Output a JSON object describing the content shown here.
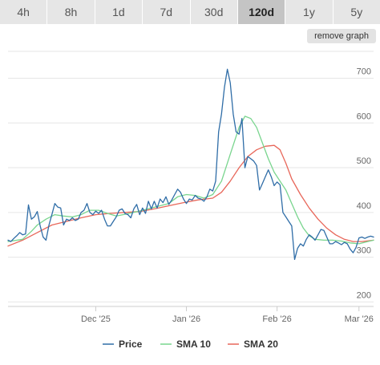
{
  "tabs": [
    {
      "label": "4h",
      "active": false
    },
    {
      "label": "8h",
      "active": false
    },
    {
      "label": "1d",
      "active": false
    },
    {
      "label": "7d",
      "active": false
    },
    {
      "label": "30d",
      "active": false
    },
    {
      "label": "120d",
      "active": true
    },
    {
      "label": "1y",
      "active": false
    },
    {
      "label": "5y",
      "active": false
    }
  ],
  "remove_button": "remove graph",
  "colors": {
    "price": "#2f6da7",
    "sma10": "#79d58e",
    "sma20": "#e8675a",
    "grid": "#e6e6e6"
  },
  "chart_data": {
    "type": "line",
    "title": "",
    "xlabel": "",
    "ylabel": "",
    "ylim": [
      190,
      760
    ],
    "yticks": [
      200,
      300,
      400,
      500,
      600,
      700
    ],
    "xticks": [
      {
        "label": "Dec '25",
        "x": 30
      },
      {
        "label": "Jan '26",
        "x": 61
      },
      {
        "label": "Feb '26",
        "x": 92
      },
      {
        "label": "Mar '26",
        "x": 120
      }
    ],
    "grid": true,
    "legend_position": "bottom",
    "series": [
      {
        "name": "Price",
        "color_key": "price",
        "points": [
          [
            0,
            338
          ],
          [
            1,
            335
          ],
          [
            2,
            342
          ],
          [
            3,
            348
          ],
          [
            4,
            355
          ],
          [
            5,
            350
          ],
          [
            6,
            352
          ],
          [
            7,
            417
          ],
          [
            8,
            385
          ],
          [
            9,
            390
          ],
          [
            10,
            402
          ],
          [
            11,
            370
          ],
          [
            12,
            345
          ],
          [
            13,
            338
          ],
          [
            14,
            372
          ],
          [
            15,
            395
          ],
          [
            16,
            420
          ],
          [
            17,
            412
          ],
          [
            18,
            410
          ],
          [
            19,
            372
          ],
          [
            20,
            385
          ],
          [
            21,
            382
          ],
          [
            22,
            388
          ],
          [
            23,
            382
          ],
          [
            24,
            385
          ],
          [
            25,
            400
          ],
          [
            26,
            405
          ],
          [
            27,
            420
          ],
          [
            28,
            400
          ],
          [
            29,
            395
          ],
          [
            30,
            403
          ],
          [
            31,
            398
          ],
          [
            32,
            405
          ],
          [
            33,
            385
          ],
          [
            34,
            370
          ],
          [
            35,
            370
          ],
          [
            36,
            380
          ],
          [
            37,
            390
          ],
          [
            38,
            405
          ],
          [
            39,
            408
          ],
          [
            40,
            398
          ],
          [
            41,
            395
          ],
          [
            42,
            388
          ],
          [
            43,
            408
          ],
          [
            44,
            418
          ],
          [
            45,
            395
          ],
          [
            46,
            410
          ],
          [
            47,
            398
          ],
          [
            48,
            425
          ],
          [
            49,
            408
          ],
          [
            50,
            425
          ],
          [
            51,
            410
          ],
          [
            52,
            430
          ],
          [
            53,
            422
          ],
          [
            54,
            435
          ],
          [
            55,
            418
          ],
          [
            56,
            428
          ],
          [
            57,
            440
          ],
          [
            58,
            452
          ],
          [
            59,
            445
          ],
          [
            60,
            430
          ],
          [
            61,
            420
          ],
          [
            62,
            430
          ],
          [
            63,
            428
          ],
          [
            64,
            438
          ],
          [
            65,
            432
          ],
          [
            66,
            430
          ],
          [
            67,
            425
          ],
          [
            68,
            435
          ],
          [
            69,
            452
          ],
          [
            70,
            448
          ],
          [
            71,
            470
          ],
          [
            72,
            580
          ],
          [
            73,
            620
          ],
          [
            74,
            680
          ],
          [
            75,
            720
          ],
          [
            76,
            690
          ],
          [
            77,
            620
          ],
          [
            78,
            580
          ],
          [
            79,
            575
          ],
          [
            80,
            610
          ],
          [
            81,
            500
          ],
          [
            82,
            525
          ],
          [
            83,
            520
          ],
          [
            84,
            515
          ],
          [
            85,
            505
          ],
          [
            86,
            450
          ],
          [
            87,
            465
          ],
          [
            88,
            480
          ],
          [
            89,
            495
          ],
          [
            90,
            480
          ],
          [
            91,
            460
          ],
          [
            92,
            468
          ],
          [
            93,
            462
          ],
          [
            94,
            400
          ],
          [
            95,
            390
          ],
          [
            96,
            380
          ],
          [
            97,
            370
          ],
          [
            98,
            295
          ],
          [
            99,
            320
          ],
          [
            100,
            330
          ],
          [
            101,
            325
          ],
          [
            102,
            340
          ],
          [
            103,
            350
          ],
          [
            104,
            345
          ],
          [
            105,
            338
          ],
          [
            106,
            350
          ],
          [
            107,
            362
          ],
          [
            108,
            360
          ],
          [
            109,
            345
          ],
          [
            110,
            330
          ],
          [
            111,
            330
          ],
          [
            112,
            335
          ],
          [
            113,
            332
          ],
          [
            114,
            328
          ],
          [
            115,
            333
          ],
          [
            116,
            330
          ],
          [
            117,
            318
          ],
          [
            118,
            310
          ],
          [
            119,
            322
          ],
          [
            120,
            343
          ],
          [
            121,
            345
          ],
          [
            122,
            342
          ],
          [
            123,
            345
          ],
          [
            124,
            347
          ],
          [
            125,
            345
          ]
        ]
      },
      {
        "name": "SMA 10",
        "color_key": "sma10",
        "points": [
          [
            0,
            335
          ],
          [
            5,
            340
          ],
          [
            8,
            358
          ],
          [
            10,
            372
          ],
          [
            13,
            385
          ],
          [
            16,
            395
          ],
          [
            19,
            392
          ],
          [
            22,
            390
          ],
          [
            25,
            395
          ],
          [
            28,
            405
          ],
          [
            31,
            405
          ],
          [
            34,
            398
          ],
          [
            37,
            392
          ],
          [
            40,
            396
          ],
          [
            43,
            400
          ],
          [
            46,
            405
          ],
          [
            49,
            410
          ],
          [
            52,
            415
          ],
          [
            55,
            420
          ],
          [
            58,
            435
          ],
          [
            61,
            440
          ],
          [
            64,
            438
          ],
          [
            67,
            432
          ],
          [
            70,
            440
          ],
          [
            73,
            470
          ],
          [
            76,
            530
          ],
          [
            79,
            590
          ],
          [
            81,
            615
          ],
          [
            83,
            610
          ],
          [
            85,
            590
          ],
          [
            87,
            555
          ],
          [
            89,
            520
          ],
          [
            91,
            490
          ],
          [
            93,
            470
          ],
          [
            95,
            450
          ],
          [
            97,
            420
          ],
          [
            99,
            390
          ],
          [
            101,
            365
          ],
          [
            103,
            348
          ],
          [
            105,
            340
          ],
          [
            108,
            338
          ],
          [
            111,
            338
          ],
          [
            114,
            336
          ],
          [
            117,
            332
          ],
          [
            120,
            330
          ],
          [
            123,
            335
          ],
          [
            125,
            338
          ]
        ]
      },
      {
        "name": "SMA 20",
        "color_key": "sma20",
        "points": [
          [
            0,
            325
          ],
          [
            5,
            338
          ],
          [
            10,
            355
          ],
          [
            15,
            372
          ],
          [
            20,
            380
          ],
          [
            25,
            388
          ],
          [
            30,
            395
          ],
          [
            35,
            398
          ],
          [
            40,
            400
          ],
          [
            45,
            402
          ],
          [
            50,
            408
          ],
          [
            55,
            415
          ],
          [
            60,
            422
          ],
          [
            65,
            428
          ],
          [
            70,
            432
          ],
          [
            73,
            445
          ],
          [
            76,
            470
          ],
          [
            79,
            500
          ],
          [
            82,
            525
          ],
          [
            85,
            540
          ],
          [
            88,
            548
          ],
          [
            91,
            550
          ],
          [
            93,
            540
          ],
          [
            95,
            510
          ],
          [
            97,
            475
          ],
          [
            100,
            440
          ],
          [
            103,
            410
          ],
          [
            106,
            385
          ],
          [
            109,
            365
          ],
          [
            112,
            350
          ],
          [
            115,
            340
          ],
          [
            118,
            335
          ],
          [
            121,
            335
          ],
          [
            125,
            338
          ]
        ]
      }
    ]
  }
}
